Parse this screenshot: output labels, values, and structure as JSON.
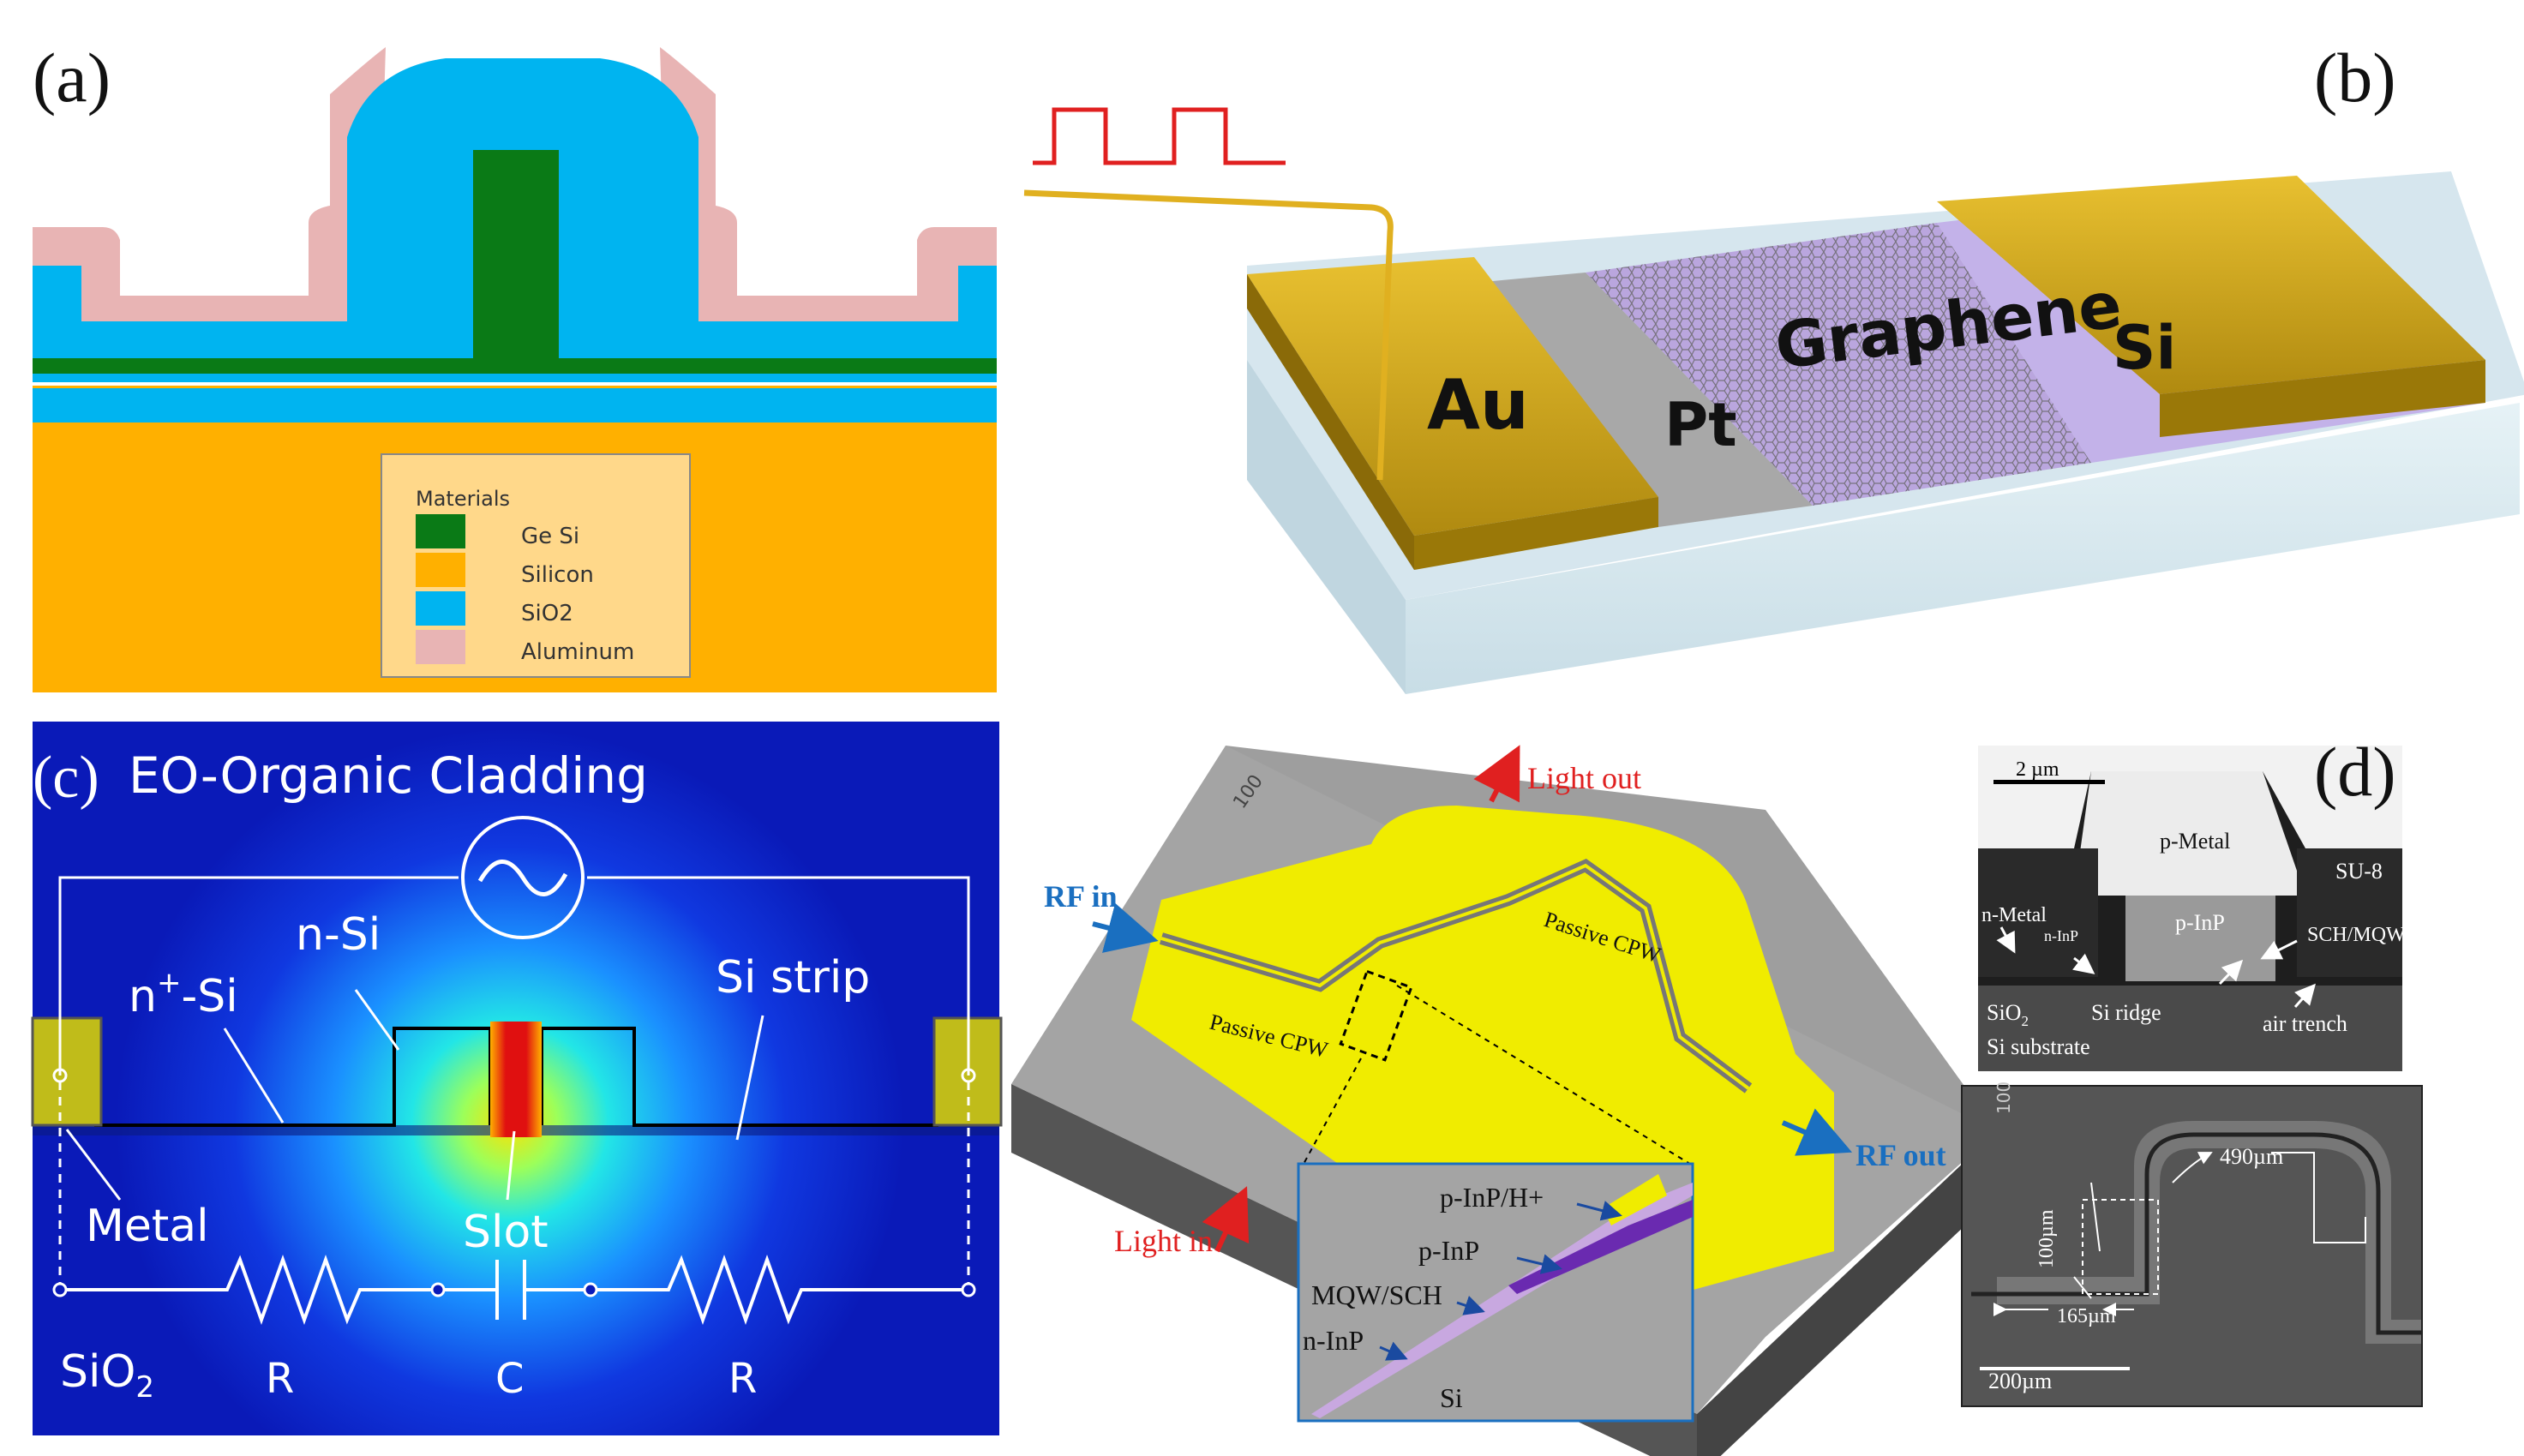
{
  "panels": {
    "a": {
      "label": "(a)",
      "legend_title": "Materials",
      "legend": [
        {
          "name": "Ge Si",
          "color": "#0a7a16"
        },
        {
          "name": "Silicon",
          "color": "#ffb000"
        },
        {
          "name": "SiO2",
          "color": "#00b4f0"
        },
        {
          "name": "Aluminum",
          "color": "#e8b4b4"
        }
      ]
    },
    "b": {
      "label": "(b)",
      "au": "Au",
      "pt": "Pt",
      "graphene": "Graphene",
      "si": "Si"
    },
    "c": {
      "label": "(c)",
      "title": "EO-Organic Cladding",
      "n_si": "n-Si",
      "n_plus": "n",
      "n_plus_sup": "+",
      "n_plus_suffix": "-Si",
      "si_strip": "Si strip",
      "metal": "Metal",
      "slot": "Slot",
      "sio2": "SiO",
      "sio2_sub": "2",
      "r1": "R",
      "c": "C",
      "r2": "R"
    },
    "d_device": {
      "rf_in": "RF in",
      "rf_out": "RF out",
      "light_out": "Light out",
      "light_in": "Light in",
      "cpw1": "Passive CPW",
      "cpw2": "Passive CPW",
      "chip_id": "100",
      "inset": [
        "p-InP/H+",
        "p-InP",
        "MQW/SCH",
        "n-InP",
        "Si"
      ]
    },
    "d": {
      "label": "(d)",
      "sem_top": {
        "scale": "2 µm",
        "p_metal": "p-Metal",
        "su8": "SU-8",
        "n_metal": "n-Metal",
        "n_inp": "n-InP",
        "p_inp": "p-InP",
        "sch_mqw": "SCH/MQW",
        "sio2": "SiO",
        "sio2_sub": "2",
        "si_ridge": "Si  ridge",
        "air_trench": "air trench",
        "si_substrate": "Si substrate"
      },
      "sem_bottom": {
        "chip_id": "100",
        "dim_490": "490µm",
        "dim_100": "100µm",
        "dim_165": "165µm",
        "scale": "200µm"
      }
    }
  }
}
